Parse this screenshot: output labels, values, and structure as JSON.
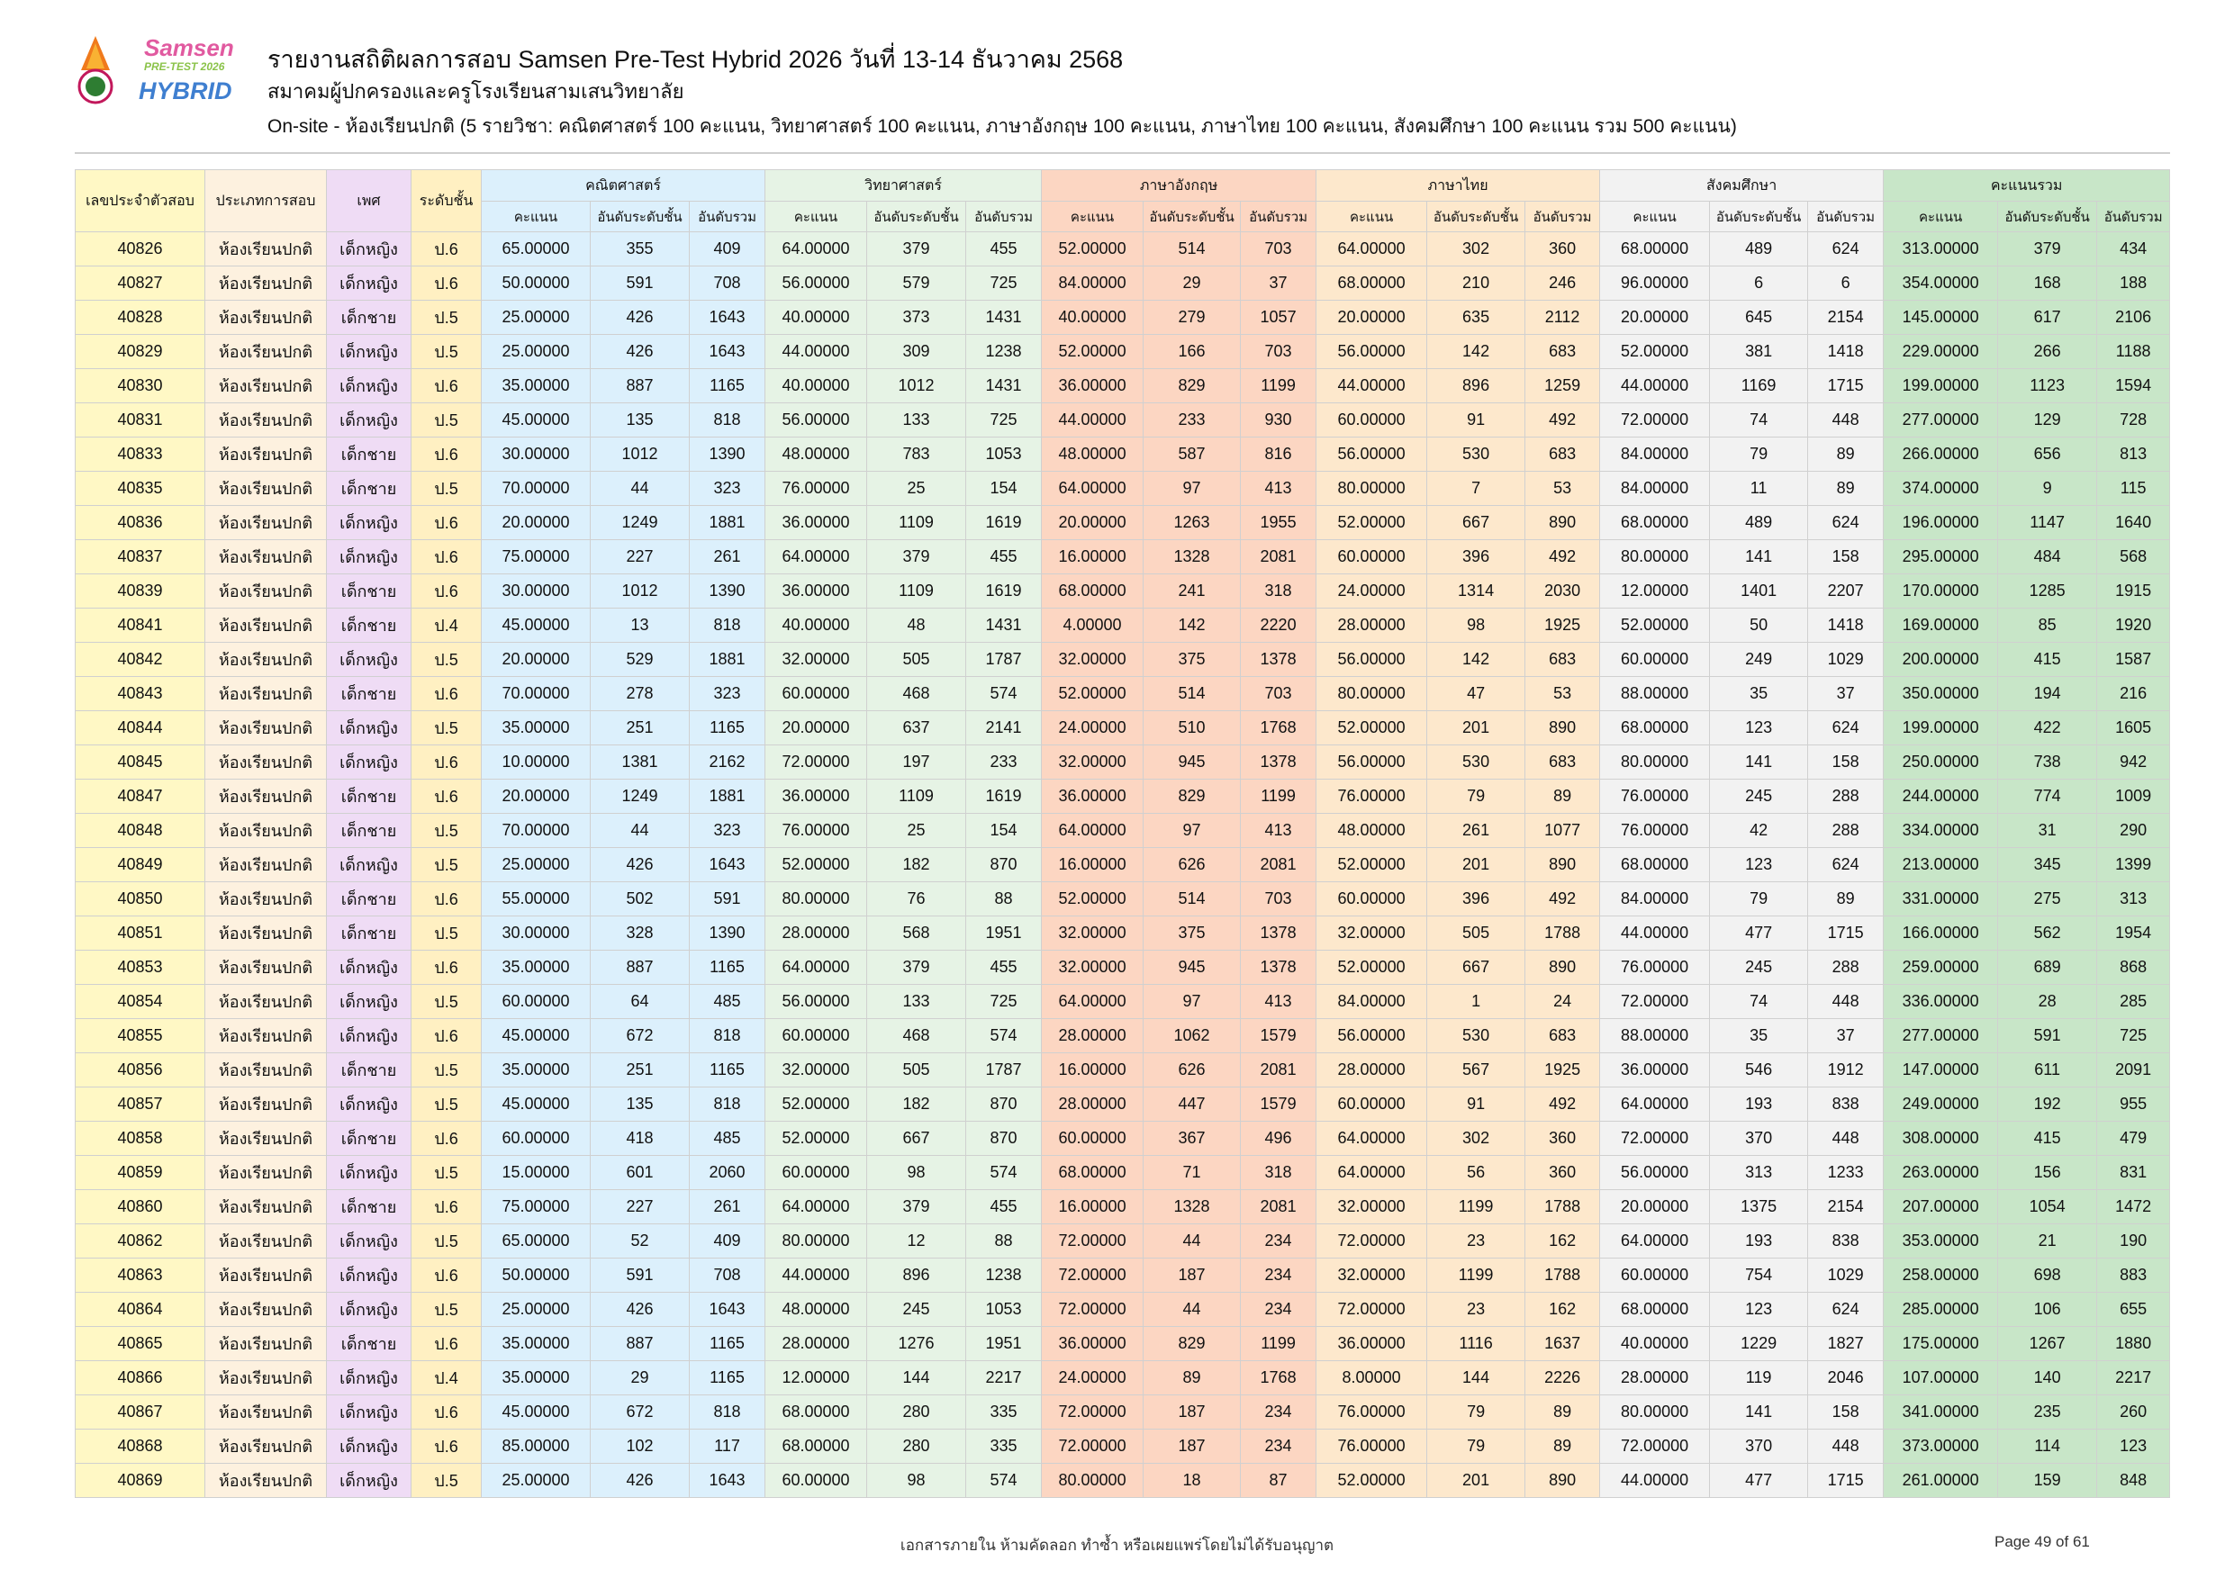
{
  "header": {
    "title": "รายงานสถิติผลการสอบ Samsen Pre-Test Hybrid 2026 วันที่ 13-14 ธันวาคม 2568",
    "subtitle": "สมาคมผู้ปกครองและครูโรงเรียนสามเสนวิทยาลัย",
    "description": "On-site - ห้องเรียนปกติ (5 รายวิชา: คณิตศาสตร์ 100 คะแนน, วิทยาศาสตร์ 100 คะแนน, ภาษาอังกฤษ 100 คะแนน, ภาษาไทย 100 คะแนน, สังคมศึกษา 100 คะแนน รวม 500 คะแนน)",
    "logo_text": [
      "Samsen",
      "PRE-TEST 2026",
      "HYBRID"
    ]
  },
  "table": {
    "fixed_headers": [
      "เลขประจำตัวสอบ",
      "ประเภทการสอบ",
      "เพศ",
      "ระดับชั้น"
    ],
    "groups": [
      "คณิตศาสตร์",
      "วิทยาศาสตร์",
      "ภาษาอังกฤษ",
      "ภาษาไทย",
      "สังคมศึกษา",
      "คะแนนรวม"
    ],
    "sub_headers": [
      "คะแนน",
      "อันดับระดับชั้น",
      "อันดับรวม"
    ],
    "colors": {
      "id": "#fff8c5",
      "type": "#fdf1df",
      "sex": "#efdcf5",
      "level": "#fff0c2",
      "math": "#dcf0fc",
      "science": "#e6f3e5",
      "english": "#fcd6c2",
      "thai": "#fde8cc",
      "social": "#f2f2f2",
      "total": "#c8e6c8"
    },
    "rows": [
      [
        "40826",
        "ห้องเรียนปกติ",
        "เด็กหญิง",
        "ป.6",
        "65.00000",
        "355",
        "409",
        "64.00000",
        "379",
        "455",
        "52.00000",
        "514",
        "703",
        "64.00000",
        "302",
        "360",
        "68.00000",
        "489",
        "624",
        "313.00000",
        "379",
        "434"
      ],
      [
        "40827",
        "ห้องเรียนปกติ",
        "เด็กหญิง",
        "ป.6",
        "50.00000",
        "591",
        "708",
        "56.00000",
        "579",
        "725",
        "84.00000",
        "29",
        "37",
        "68.00000",
        "210",
        "246",
        "96.00000",
        "6",
        "6",
        "354.00000",
        "168",
        "188"
      ],
      [
        "40828",
        "ห้องเรียนปกติ",
        "เด็กชาย",
        "ป.5",
        "25.00000",
        "426",
        "1643",
        "40.00000",
        "373",
        "1431",
        "40.00000",
        "279",
        "1057",
        "20.00000",
        "635",
        "2112",
        "20.00000",
        "645",
        "2154",
        "145.00000",
        "617",
        "2106"
      ],
      [
        "40829",
        "ห้องเรียนปกติ",
        "เด็กหญิง",
        "ป.5",
        "25.00000",
        "426",
        "1643",
        "44.00000",
        "309",
        "1238",
        "52.00000",
        "166",
        "703",
        "56.00000",
        "142",
        "683",
        "52.00000",
        "381",
        "1418",
        "229.00000",
        "266",
        "1188"
      ],
      [
        "40830",
        "ห้องเรียนปกติ",
        "เด็กหญิง",
        "ป.6",
        "35.00000",
        "887",
        "1165",
        "40.00000",
        "1012",
        "1431",
        "36.00000",
        "829",
        "1199",
        "44.00000",
        "896",
        "1259",
        "44.00000",
        "1169",
        "1715",
        "199.00000",
        "1123",
        "1594"
      ],
      [
        "40831",
        "ห้องเรียนปกติ",
        "เด็กหญิง",
        "ป.5",
        "45.00000",
        "135",
        "818",
        "56.00000",
        "133",
        "725",
        "44.00000",
        "233",
        "930",
        "60.00000",
        "91",
        "492",
        "72.00000",
        "74",
        "448",
        "277.00000",
        "129",
        "728"
      ],
      [
        "40833",
        "ห้องเรียนปกติ",
        "เด็กชาย",
        "ป.6",
        "30.00000",
        "1012",
        "1390",
        "48.00000",
        "783",
        "1053",
        "48.00000",
        "587",
        "816",
        "56.00000",
        "530",
        "683",
        "84.00000",
        "79",
        "89",
        "266.00000",
        "656",
        "813"
      ],
      [
        "40835",
        "ห้องเรียนปกติ",
        "เด็กชาย",
        "ป.5",
        "70.00000",
        "44",
        "323",
        "76.00000",
        "25",
        "154",
        "64.00000",
        "97",
        "413",
        "80.00000",
        "7",
        "53",
        "84.00000",
        "11",
        "89",
        "374.00000",
        "9",
        "115"
      ],
      [
        "40836",
        "ห้องเรียนปกติ",
        "เด็กหญิง",
        "ป.6",
        "20.00000",
        "1249",
        "1881",
        "36.00000",
        "1109",
        "1619",
        "20.00000",
        "1263",
        "1955",
        "52.00000",
        "667",
        "890",
        "68.00000",
        "489",
        "624",
        "196.00000",
        "1147",
        "1640"
      ],
      [
        "40837",
        "ห้องเรียนปกติ",
        "เด็กหญิง",
        "ป.6",
        "75.00000",
        "227",
        "261",
        "64.00000",
        "379",
        "455",
        "16.00000",
        "1328",
        "2081",
        "60.00000",
        "396",
        "492",
        "80.00000",
        "141",
        "158",
        "295.00000",
        "484",
        "568"
      ],
      [
        "40839",
        "ห้องเรียนปกติ",
        "เด็กชาย",
        "ป.6",
        "30.00000",
        "1012",
        "1390",
        "36.00000",
        "1109",
        "1619",
        "68.00000",
        "241",
        "318",
        "24.00000",
        "1314",
        "2030",
        "12.00000",
        "1401",
        "2207",
        "170.00000",
        "1285",
        "1915"
      ],
      [
        "40841",
        "ห้องเรียนปกติ",
        "เด็กชาย",
        "ป.4",
        "45.00000",
        "13",
        "818",
        "40.00000",
        "48",
        "1431",
        "4.00000",
        "142",
        "2220",
        "28.00000",
        "98",
        "1925",
        "52.00000",
        "50",
        "1418",
        "169.00000",
        "85",
        "1920"
      ],
      [
        "40842",
        "ห้องเรียนปกติ",
        "เด็กหญิง",
        "ป.5",
        "20.00000",
        "529",
        "1881",
        "32.00000",
        "505",
        "1787",
        "32.00000",
        "375",
        "1378",
        "56.00000",
        "142",
        "683",
        "60.00000",
        "249",
        "1029",
        "200.00000",
        "415",
        "1587"
      ],
      [
        "40843",
        "ห้องเรียนปกติ",
        "เด็กชาย",
        "ป.6",
        "70.00000",
        "278",
        "323",
        "60.00000",
        "468",
        "574",
        "52.00000",
        "514",
        "703",
        "80.00000",
        "47",
        "53",
        "88.00000",
        "35",
        "37",
        "350.00000",
        "194",
        "216"
      ],
      [
        "40844",
        "ห้องเรียนปกติ",
        "เด็กหญิง",
        "ป.5",
        "35.00000",
        "251",
        "1165",
        "20.00000",
        "637",
        "2141",
        "24.00000",
        "510",
        "1768",
        "52.00000",
        "201",
        "890",
        "68.00000",
        "123",
        "624",
        "199.00000",
        "422",
        "1605"
      ],
      [
        "40845",
        "ห้องเรียนปกติ",
        "เด็กหญิง",
        "ป.6",
        "10.00000",
        "1381",
        "2162",
        "72.00000",
        "197",
        "233",
        "32.00000",
        "945",
        "1378",
        "56.00000",
        "530",
        "683",
        "80.00000",
        "141",
        "158",
        "250.00000",
        "738",
        "942"
      ],
      [
        "40847",
        "ห้องเรียนปกติ",
        "เด็กชาย",
        "ป.6",
        "20.00000",
        "1249",
        "1881",
        "36.00000",
        "1109",
        "1619",
        "36.00000",
        "829",
        "1199",
        "76.00000",
        "79",
        "89",
        "76.00000",
        "245",
        "288",
        "244.00000",
        "774",
        "1009"
      ],
      [
        "40848",
        "ห้องเรียนปกติ",
        "เด็กชาย",
        "ป.5",
        "70.00000",
        "44",
        "323",
        "76.00000",
        "25",
        "154",
        "64.00000",
        "97",
        "413",
        "48.00000",
        "261",
        "1077",
        "76.00000",
        "42",
        "288",
        "334.00000",
        "31",
        "290"
      ],
      [
        "40849",
        "ห้องเรียนปกติ",
        "เด็กหญิง",
        "ป.5",
        "25.00000",
        "426",
        "1643",
        "52.00000",
        "182",
        "870",
        "16.00000",
        "626",
        "2081",
        "52.00000",
        "201",
        "890",
        "68.00000",
        "123",
        "624",
        "213.00000",
        "345",
        "1399"
      ],
      [
        "40850",
        "ห้องเรียนปกติ",
        "เด็กชาย",
        "ป.6",
        "55.00000",
        "502",
        "591",
        "80.00000",
        "76",
        "88",
        "52.00000",
        "514",
        "703",
        "60.00000",
        "396",
        "492",
        "84.00000",
        "79",
        "89",
        "331.00000",
        "275",
        "313"
      ],
      [
        "40851",
        "ห้องเรียนปกติ",
        "เด็กชาย",
        "ป.5",
        "30.00000",
        "328",
        "1390",
        "28.00000",
        "568",
        "1951",
        "32.00000",
        "375",
        "1378",
        "32.00000",
        "505",
        "1788",
        "44.00000",
        "477",
        "1715",
        "166.00000",
        "562",
        "1954"
      ],
      [
        "40853",
        "ห้องเรียนปกติ",
        "เด็กหญิง",
        "ป.6",
        "35.00000",
        "887",
        "1165",
        "64.00000",
        "379",
        "455",
        "32.00000",
        "945",
        "1378",
        "52.00000",
        "667",
        "890",
        "76.00000",
        "245",
        "288",
        "259.00000",
        "689",
        "868"
      ],
      [
        "40854",
        "ห้องเรียนปกติ",
        "เด็กหญิง",
        "ป.5",
        "60.00000",
        "64",
        "485",
        "56.00000",
        "133",
        "725",
        "64.00000",
        "97",
        "413",
        "84.00000",
        "1",
        "24",
        "72.00000",
        "74",
        "448",
        "336.00000",
        "28",
        "285"
      ],
      [
        "40855",
        "ห้องเรียนปกติ",
        "เด็กหญิง",
        "ป.6",
        "45.00000",
        "672",
        "818",
        "60.00000",
        "468",
        "574",
        "28.00000",
        "1062",
        "1579",
        "56.00000",
        "530",
        "683",
        "88.00000",
        "35",
        "37",
        "277.00000",
        "591",
        "725"
      ],
      [
        "40856",
        "ห้องเรียนปกติ",
        "เด็กชาย",
        "ป.5",
        "35.00000",
        "251",
        "1165",
        "32.00000",
        "505",
        "1787",
        "16.00000",
        "626",
        "2081",
        "28.00000",
        "567",
        "1925",
        "36.00000",
        "546",
        "1912",
        "147.00000",
        "611",
        "2091"
      ],
      [
        "40857",
        "ห้องเรียนปกติ",
        "เด็กหญิง",
        "ป.5",
        "45.00000",
        "135",
        "818",
        "52.00000",
        "182",
        "870",
        "28.00000",
        "447",
        "1579",
        "60.00000",
        "91",
        "492",
        "64.00000",
        "193",
        "838",
        "249.00000",
        "192",
        "955"
      ],
      [
        "40858",
        "ห้องเรียนปกติ",
        "เด็กชาย",
        "ป.6",
        "60.00000",
        "418",
        "485",
        "52.00000",
        "667",
        "870",
        "60.00000",
        "367",
        "496",
        "64.00000",
        "302",
        "360",
        "72.00000",
        "370",
        "448",
        "308.00000",
        "415",
        "479"
      ],
      [
        "40859",
        "ห้องเรียนปกติ",
        "เด็กหญิง",
        "ป.5",
        "15.00000",
        "601",
        "2060",
        "60.00000",
        "98",
        "574",
        "68.00000",
        "71",
        "318",
        "64.00000",
        "56",
        "360",
        "56.00000",
        "313",
        "1233",
        "263.00000",
        "156",
        "831"
      ],
      [
        "40860",
        "ห้องเรียนปกติ",
        "เด็กชาย",
        "ป.6",
        "75.00000",
        "227",
        "261",
        "64.00000",
        "379",
        "455",
        "16.00000",
        "1328",
        "2081",
        "32.00000",
        "1199",
        "1788",
        "20.00000",
        "1375",
        "2154",
        "207.00000",
        "1054",
        "1472"
      ],
      [
        "40862",
        "ห้องเรียนปกติ",
        "เด็กหญิง",
        "ป.5",
        "65.00000",
        "52",
        "409",
        "80.00000",
        "12",
        "88",
        "72.00000",
        "44",
        "234",
        "72.00000",
        "23",
        "162",
        "64.00000",
        "193",
        "838",
        "353.00000",
        "21",
        "190"
      ],
      [
        "40863",
        "ห้องเรียนปกติ",
        "เด็กหญิง",
        "ป.6",
        "50.00000",
        "591",
        "708",
        "44.00000",
        "896",
        "1238",
        "72.00000",
        "187",
        "234",
        "32.00000",
        "1199",
        "1788",
        "60.00000",
        "754",
        "1029",
        "258.00000",
        "698",
        "883"
      ],
      [
        "40864",
        "ห้องเรียนปกติ",
        "เด็กหญิง",
        "ป.5",
        "25.00000",
        "426",
        "1643",
        "48.00000",
        "245",
        "1053",
        "72.00000",
        "44",
        "234",
        "72.00000",
        "23",
        "162",
        "68.00000",
        "123",
        "624",
        "285.00000",
        "106",
        "655"
      ],
      [
        "40865",
        "ห้องเรียนปกติ",
        "เด็กชาย",
        "ป.6",
        "35.00000",
        "887",
        "1165",
        "28.00000",
        "1276",
        "1951",
        "36.00000",
        "829",
        "1199",
        "36.00000",
        "1116",
        "1637",
        "40.00000",
        "1229",
        "1827",
        "175.00000",
        "1267",
        "1880"
      ],
      [
        "40866",
        "ห้องเรียนปกติ",
        "เด็กหญิง",
        "ป.4",
        "35.00000",
        "29",
        "1165",
        "12.00000",
        "144",
        "2217",
        "24.00000",
        "89",
        "1768",
        "8.00000",
        "144",
        "2226",
        "28.00000",
        "119",
        "2046",
        "107.00000",
        "140",
        "2217"
      ],
      [
        "40867",
        "ห้องเรียนปกติ",
        "เด็กหญิง",
        "ป.6",
        "45.00000",
        "672",
        "818",
        "68.00000",
        "280",
        "335",
        "72.00000",
        "187",
        "234",
        "76.00000",
        "79",
        "89",
        "80.00000",
        "141",
        "158",
        "341.00000",
        "235",
        "260"
      ],
      [
        "40868",
        "ห้องเรียนปกติ",
        "เด็กหญิง",
        "ป.6",
        "85.00000",
        "102",
        "117",
        "68.00000",
        "280",
        "335",
        "72.00000",
        "187",
        "234",
        "76.00000",
        "79",
        "89",
        "72.00000",
        "370",
        "448",
        "373.00000",
        "114",
        "123"
      ],
      [
        "40869",
        "ห้องเรียนปกติ",
        "เด็กหญิง",
        "ป.5",
        "25.00000",
        "426",
        "1643",
        "60.00000",
        "98",
        "574",
        "80.00000",
        "18",
        "87",
        "52.00000",
        "201",
        "890",
        "44.00000",
        "477",
        "1715",
        "261.00000",
        "159",
        "848"
      ]
    ]
  },
  "footer": {
    "notice": "เอกสารภายใน ห้ามคัดลอก ทำซ้ำ หรือเผยแพร่โดยไม่ได้รับอนุญาต",
    "page": "Page 49 of 61"
  }
}
